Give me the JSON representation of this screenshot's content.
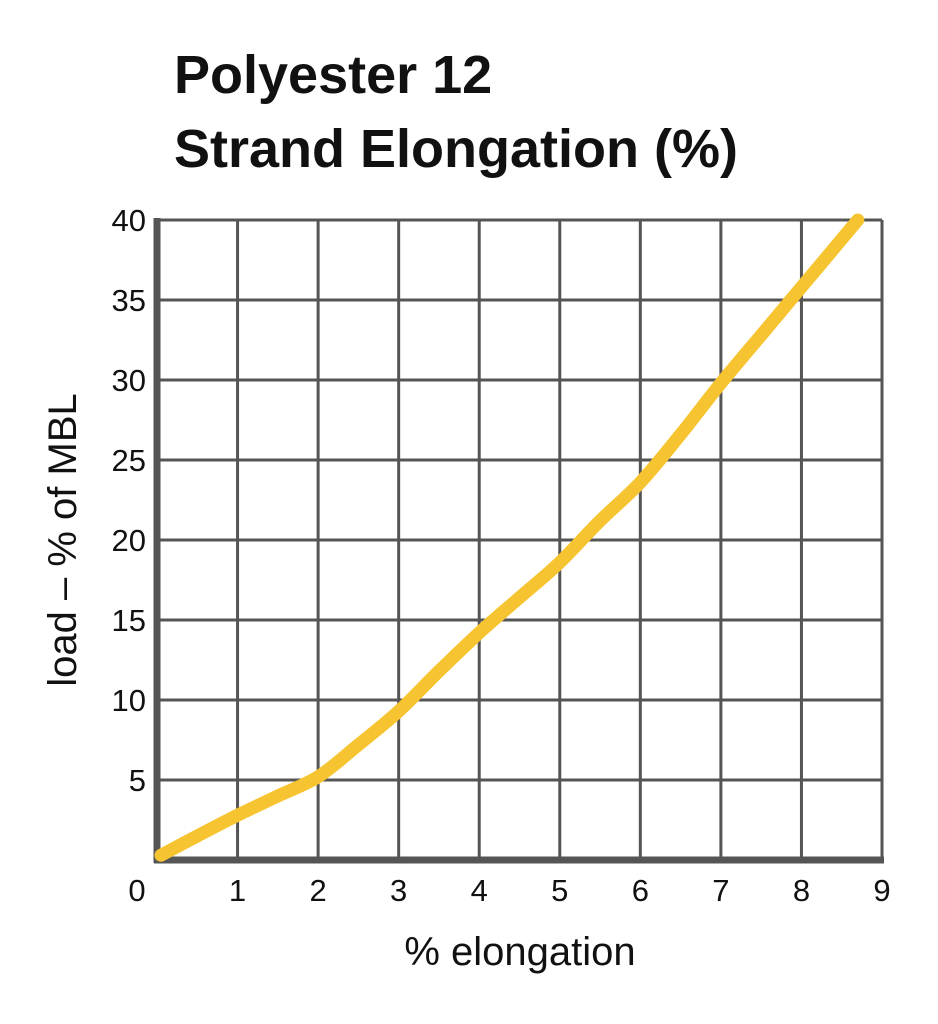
{
  "chart_data": {
    "type": "line",
    "title": "Polyester 12",
    "subtitle": "Strand Elongation (%)",
    "xlabel": "% elongation",
    "ylabel": "load – % of MBL",
    "xlim": [
      0,
      9
    ],
    "ylim": [
      0,
      40
    ],
    "xticks": [
      "0",
      "1",
      "2",
      "3",
      "4",
      "5",
      "6",
      "7",
      "8",
      "9"
    ],
    "yticks": [
      "5",
      "10",
      "15",
      "20",
      "25",
      "30",
      "35",
      "40"
    ],
    "grid": true,
    "series": [
      {
        "color": "#F7C431",
        "x": [
          0.05,
          0.5,
          1.0,
          1.5,
          2.0,
          2.5,
          3.0,
          3.5,
          4.0,
          4.5,
          5.0,
          5.5,
          6.0,
          6.5,
          7.0,
          7.5,
          8.0,
          8.5,
          8.7
        ],
        "y": [
          0.3,
          1.5,
          2.8,
          4.0,
          5.2,
          7.2,
          9.3,
          11.8,
          14.2,
          16.4,
          18.6,
          21.2,
          23.6,
          26.6,
          29.8,
          32.8,
          35.8,
          38.8,
          40.0
        ]
      }
    ]
  }
}
